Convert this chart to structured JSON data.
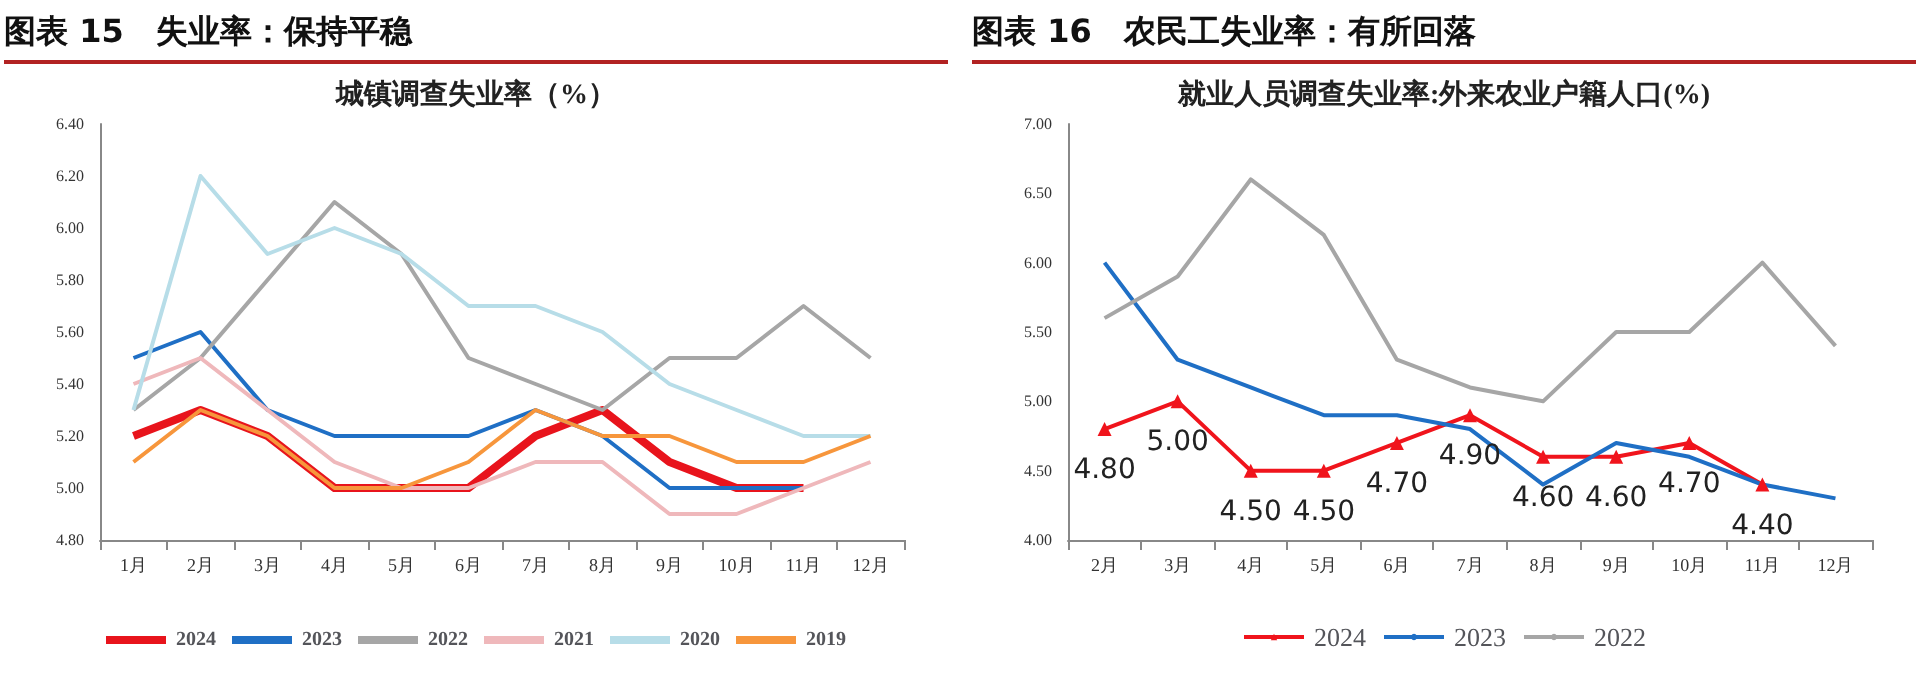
{
  "chart_data": [
    {
      "type": "line",
      "title": "图表 15　失业率：保持平稳",
      "subtitle": "城镇调查失业率（%）",
      "categories": [
        "1月",
        "2月",
        "3月",
        "4月",
        "5月",
        "6月",
        "7月",
        "8月",
        "9月",
        "10月",
        "11月",
        "12月"
      ],
      "ylim": [
        4.8,
        6.4
      ],
      "yticks": [
        {
          "value": 4.8,
          "label": "4.80"
        },
        {
          "value": 5.0,
          "label": "5.00"
        },
        {
          "value": 5.2,
          "label": "5.20"
        },
        {
          "value": 5.4,
          "label": "5.40"
        },
        {
          "value": 5.6,
          "label": "5.60"
        },
        {
          "value": 5.8,
          "label": "5.80"
        },
        {
          "value": 6.0,
          "label": "6.00"
        },
        {
          "value": 6.2,
          "label": "6.20"
        },
        {
          "value": 6.4,
          "label": "6.40"
        }
      ],
      "grid": false,
      "legend": "bottom",
      "marker": "none",
      "series": [
        {
          "name": "2024",
          "color": "#e8141c",
          "values": [
            5.2,
            5.3,
            5.2,
            5.0,
            5.0,
            5.0,
            5.2,
            5.3,
            5.1,
            5.0,
            5.0,
            null
          ]
        },
        {
          "name": "2023",
          "color": "#1f6fc5",
          "values": [
            5.5,
            5.6,
            5.3,
            5.2,
            5.2,
            5.2,
            5.3,
            5.2,
            5.0,
            5.0,
            5.0,
            null
          ]
        },
        {
          "name": "2022",
          "color": "#a6a6a6",
          "values": [
            5.3,
            5.5,
            5.8,
            6.1,
            5.9,
            5.5,
            5.4,
            5.3,
            5.5,
            5.5,
            5.7,
            5.5
          ]
        },
        {
          "name": "2021",
          "color": "#efb8bb",
          "values": [
            5.4,
            5.5,
            5.3,
            5.1,
            5.0,
            5.0,
            5.1,
            5.1,
            4.9,
            4.9,
            5.0,
            5.1
          ]
        },
        {
          "name": "2020",
          "color": "#b7dde8",
          "values": [
            5.3,
            6.2,
            5.9,
            6.0,
            5.9,
            5.7,
            5.7,
            5.6,
            5.4,
            5.3,
            5.2,
            5.2
          ]
        },
        {
          "name": "2019",
          "color": "#f7963c",
          "values": [
            5.1,
            5.3,
            5.2,
            5.0,
            5.0,
            5.1,
            5.3,
            5.2,
            5.2,
            5.1,
            5.1,
            5.2
          ]
        }
      ]
    },
    {
      "type": "line",
      "title": "图表 16　农民工失业率：有所回落",
      "subtitle": "就业人员调查失业率:外来农业户籍人口(%)",
      "categories": [
        "2月",
        "3月",
        "4月",
        "5月",
        "6月",
        "7月",
        "8月",
        "9月",
        "10月",
        "11月",
        "12月"
      ],
      "ylim": [
        4.0,
        7.0
      ],
      "yticks": [
        {
          "value": 4.0,
          "label": "4.00"
        },
        {
          "value": 4.5,
          "label": "4.50"
        },
        {
          "value": 5.0,
          "label": "5.00"
        },
        {
          "value": 5.5,
          "label": "5.50"
        },
        {
          "value": 6.0,
          "label": "6.00"
        },
        {
          "value": 6.5,
          "label": "6.50"
        },
        {
          "value": 7.0,
          "label": "7.00"
        }
      ],
      "grid": false,
      "legend": "bottom",
      "series": [
        {
          "name": "2024",
          "color": "#f0141c",
          "marker": "triangle",
          "values": [
            4.8,
            5.0,
            4.5,
            4.5,
            4.7,
            4.9,
            4.6,
            4.6,
            4.7,
            4.4,
            null
          ],
          "value_labels": [
            "4.80",
            "5.00",
            "4.50",
            "4.50",
            "4.70",
            "4.90",
            "4.60",
            "4.60",
            "4.70",
            "4.40",
            null
          ]
        },
        {
          "name": "2023",
          "color": "#1f6fc5",
          "marker": "none",
          "values": [
            6.0,
            5.3,
            5.1,
            4.9,
            4.9,
            4.8,
            4.4,
            4.7,
            4.6,
            4.4,
            4.3
          ]
        },
        {
          "name": "2022",
          "color": "#a6a6a6",
          "marker": "none",
          "values": [
            5.6,
            5.9,
            6.6,
            6.2,
            5.3,
            5.1,
            5.0,
            5.5,
            5.5,
            6.0,
            5.4
          ]
        }
      ]
    }
  ]
}
